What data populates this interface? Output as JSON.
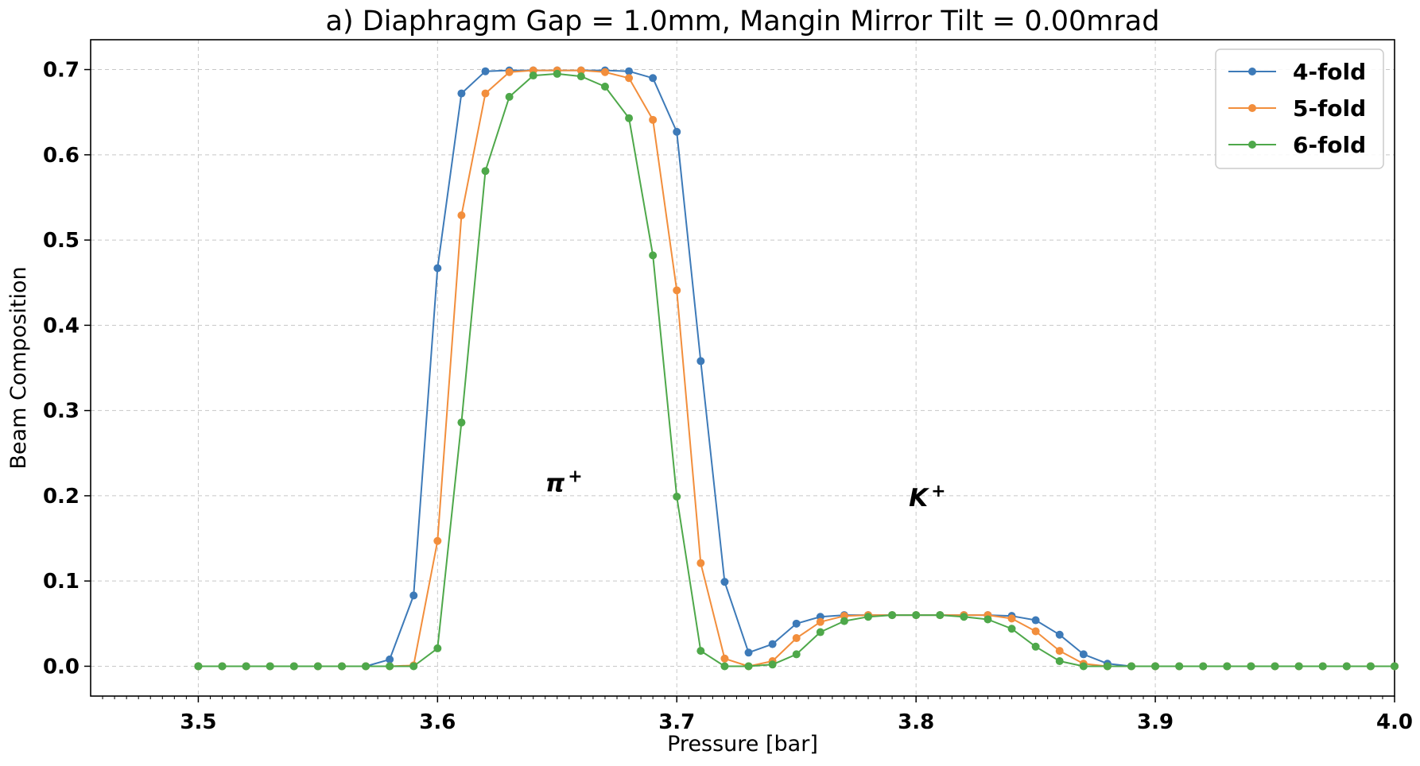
{
  "chart_data": {
    "type": "line",
    "title": "a) Diaphragm Gap = 1.0mm, Mangin Mirror Tilt = 0.00mrad",
    "xlabel": "Pressure [bar]",
    "ylabel": "Beam Composition",
    "xlim": [
      3.455,
      4.0
    ],
    "ylim": [
      -0.035,
      0.735
    ],
    "xticks": [
      "3.5",
      "3.6",
      "3.7",
      "3.8",
      "3.9",
      "4.0"
    ],
    "yticks": [
      "0.0",
      "0.1",
      "0.2",
      "0.3",
      "0.4",
      "0.5",
      "0.6",
      "0.7"
    ],
    "grid": true,
    "legend_position": "top-right",
    "x": [
      3.5,
      3.51,
      3.52,
      3.53,
      3.54,
      3.55,
      3.56,
      3.57,
      3.58,
      3.59,
      3.6,
      3.61,
      3.62,
      3.63,
      3.64,
      3.65,
      3.66,
      3.67,
      3.68,
      3.69,
      3.7,
      3.71,
      3.72,
      3.73,
      3.74,
      3.75,
      3.76,
      3.77,
      3.78,
      3.79,
      3.8,
      3.81,
      3.82,
      3.83,
      3.84,
      3.85,
      3.86,
      3.87,
      3.88,
      3.89,
      3.9,
      3.91,
      3.92,
      3.93,
      3.94,
      3.95,
      3.96,
      3.97,
      3.98,
      3.99,
      4.0
    ],
    "series": [
      {
        "name": "4-fold",
        "color": "#3d7ab8",
        "values": [
          0,
          0,
          0,
          0,
          0,
          0,
          0,
          0,
          0.008,
          0.083,
          0.467,
          0.672,
          0.698,
          0.699,
          0.699,
          0.699,
          0.699,
          0.699,
          0.698,
          0.69,
          0.627,
          0.358,
          0.099,
          0.016,
          0.026,
          0.05,
          0.058,
          0.06,
          0.06,
          0.06,
          0.06,
          0.06,
          0.06,
          0.06,
          0.059,
          0.054,
          0.037,
          0.014,
          0.003,
          0,
          0,
          0,
          0,
          0,
          0,
          0,
          0,
          0,
          0,
          0,
          0
        ]
      },
      {
        "name": "5-fold",
        "color": "#f28e3c",
        "values": [
          0,
          0,
          0,
          0,
          0,
          0,
          0,
          0,
          0,
          0.001,
          0.147,
          0.529,
          0.672,
          0.697,
          0.699,
          0.699,
          0.699,
          0.697,
          0.69,
          0.641,
          0.441,
          0.121,
          0.009,
          0,
          0.006,
          0.033,
          0.052,
          0.059,
          0.06,
          0.06,
          0.06,
          0.06,
          0.06,
          0.06,
          0.056,
          0.041,
          0.018,
          0.003,
          0,
          0,
          0,
          0,
          0,
          0,
          0,
          0,
          0,
          0,
          0,
          0,
          0
        ]
      },
      {
        "name": "6-fold",
        "color": "#4ea84a",
        "values": [
          0,
          0,
          0,
          0,
          0,
          0,
          0,
          0,
          0,
          0,
          0.021,
          0.286,
          0.581,
          0.668,
          0.693,
          0.695,
          0.692,
          0.68,
          0.643,
          0.482,
          0.199,
          0.018,
          0,
          0,
          0.002,
          0.014,
          0.04,
          0.053,
          0.058,
          0.06,
          0.06,
          0.06,
          0.058,
          0.055,
          0.044,
          0.023,
          0.006,
          0,
          0,
          0,
          0,
          0,
          0,
          0,
          0,
          0,
          0,
          0,
          0,
          0,
          0
        ]
      }
    ],
    "annotations": [
      {
        "text": "π",
        "sup": "+",
        "x": 3.645,
        "y": 0.205
      },
      {
        "text": "K",
        "sup": "+",
        "x": 3.797,
        "y": 0.188
      }
    ]
  }
}
